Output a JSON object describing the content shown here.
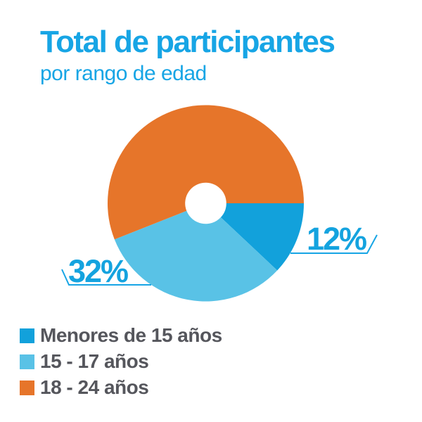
{
  "colors": {
    "background": "#FFFFFF",
    "title_text": "#17A5E5",
    "subtitle_text": "#17A5E5",
    "pct_label_text": "#14A3DF",
    "callout_line": "#17A5E5",
    "legend_text": "#55565C"
  },
  "chart_data": {
    "type": "pie",
    "title": "Total de participantes",
    "subtitle": "por rango de edad",
    "donut": true,
    "donut_hole_ratio": 0.21,
    "start_angle_deg": 0,
    "direction": "clockwise",
    "legend_position": "bottom-left",
    "slices": [
      {
        "label": "Menores de 15 años",
        "value_pct": 12,
        "pct_label": "12%",
        "pct_label_shown": true,
        "color": "#12A1DB"
      },
      {
        "label": "15 - 17 años",
        "value_pct": 32,
        "pct_label": "32%",
        "pct_label_shown": true,
        "color": "#59C2E6"
      },
      {
        "label": "18 - 24 años",
        "value_pct": 56,
        "pct_label": "",
        "pct_label_shown": false,
        "color": "#E6752A"
      }
    ]
  }
}
